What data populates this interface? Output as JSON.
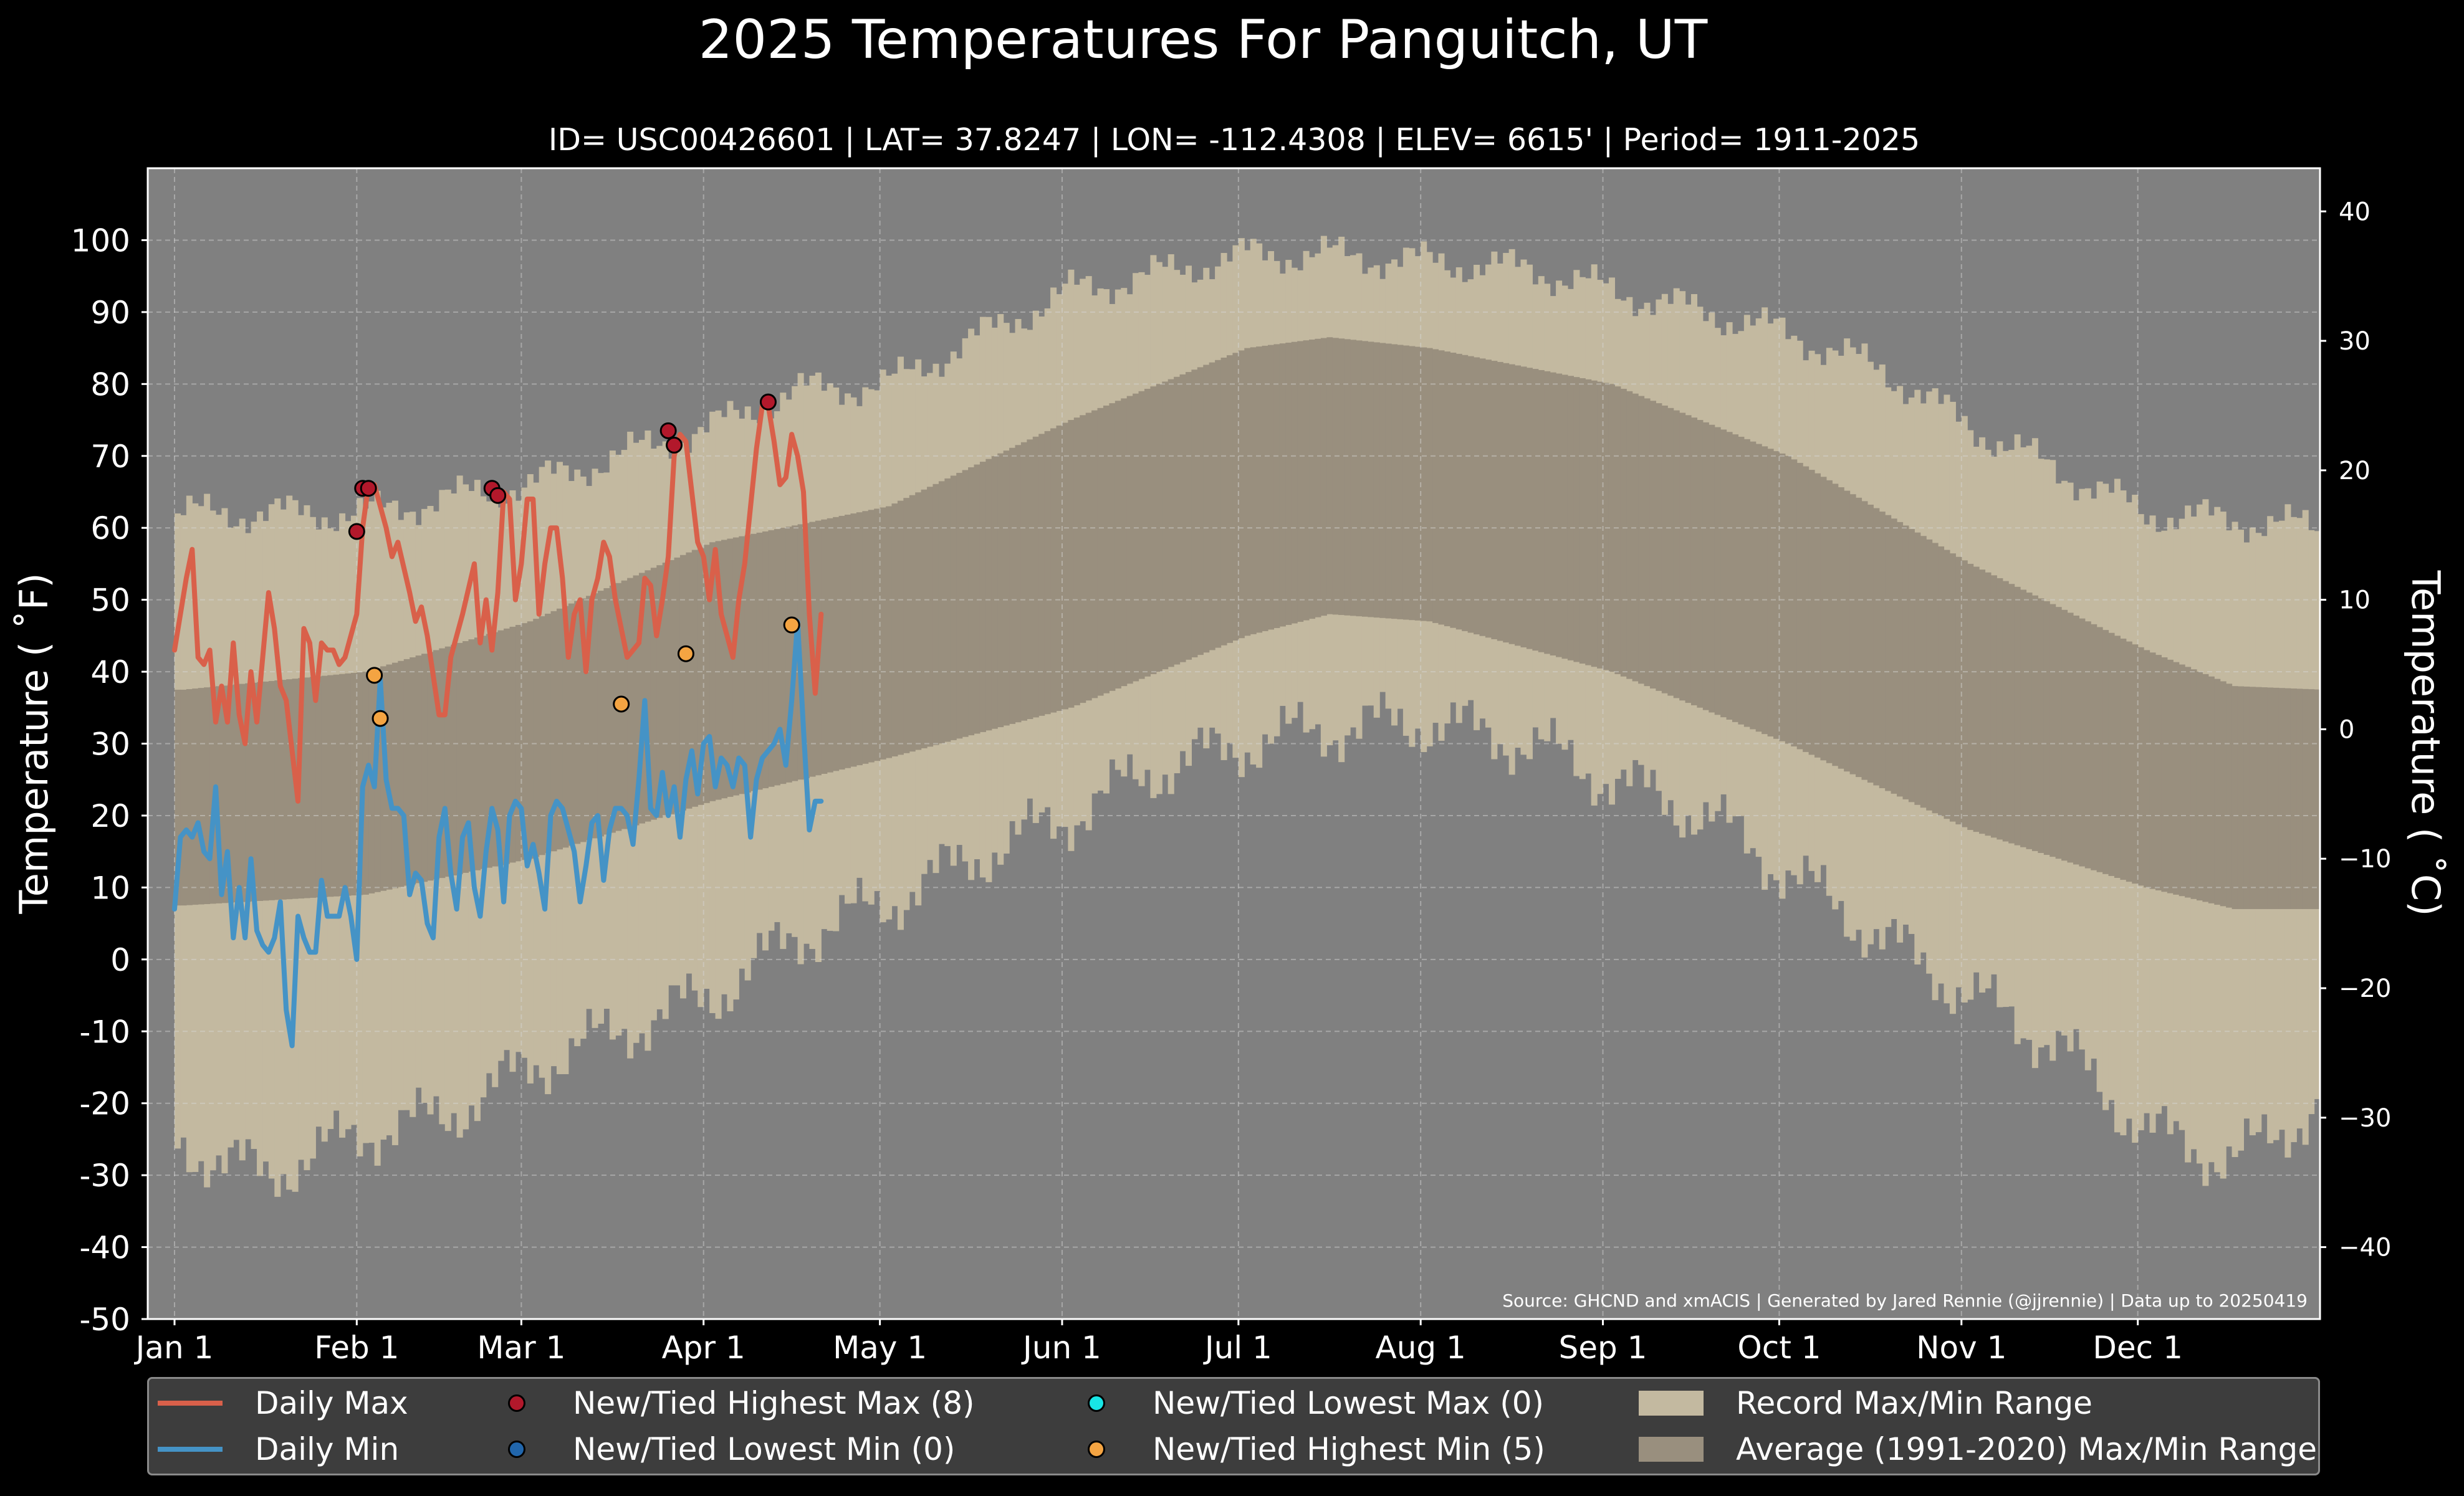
{
  "title": "2025 Temperatures For Panguitch, UT",
  "subtitle": "ID= USC00426601 | LAT= 37.8247 | LON= -112.4308 | ELEV= 6615' | Period= 1911-2025",
  "colors": {
    "background": "#000000",
    "plot_bg": "#808080",
    "record_range": "#c3b9a0",
    "average_range": "#998f7e",
    "daily_max": "#d9604a",
    "daily_min": "#4593c6",
    "high_max_marker": "#b2182b",
    "low_min_marker": "#2166ac",
    "low_max_marker": "#18e6e6",
    "high_min_marker": "#f4a442"
  },
  "legend": {
    "daily_max": "Daily Max",
    "daily_min": "Daily Min",
    "high_max": "New/Tied Highest Max (8)",
    "low_min": "New/Tied Lowest Min (0)",
    "low_max": "New/Tied Lowest Max (0)",
    "high_min": "New/Tied Highest Min (5)",
    "record_range": "Record Max/Min Range",
    "average_range": "Average (1991-2020) Max/Min Range"
  },
  "chart_data": {
    "type": "line",
    "title": "2025 Temperatures For Panguitch, UT",
    "subtitle": "ID= USC00426601 | LAT= 37.8247 | LON= -112.4308 | ELEV= 6615' | Period= 1911-2025",
    "ylabel": "Temperature ($^\\circ$F)",
    "ylabel_left": "Temperature ( ˚F)",
    "ylabel_right": "Temperature ( ˚C)",
    "ylim": [
      -50,
      110
    ],
    "ylim_c": [
      -45.56,
      43.33
    ],
    "xlim_days": [
      0,
      365
    ],
    "grid": true,
    "legend_position": "bottom",
    "x_ticks": [
      {
        "day": 1,
        "label": "Jan 1"
      },
      {
        "day": 32,
        "label": "Feb 1"
      },
      {
        "day": 60,
        "label": "Mar 1"
      },
      {
        "day": 91,
        "label": "Apr 1"
      },
      {
        "day": 121,
        "label": "May 1"
      },
      {
        "day": 152,
        "label": "Jun 1"
      },
      {
        "day": 182,
        "label": "Jul 1"
      },
      {
        "day": 213,
        "label": "Aug 1"
      },
      {
        "day": 244,
        "label": "Sep 1"
      },
      {
        "day": 274,
        "label": "Oct 1"
      },
      {
        "day": 305,
        "label": "Nov 1"
      },
      {
        "day": 335,
        "label": "Dec 1"
      }
    ],
    "y_ticks_f": [
      -50,
      -40,
      -30,
      -20,
      -10,
      0,
      10,
      20,
      30,
      40,
      50,
      60,
      70,
      80,
      90,
      100
    ],
    "y_tick_labels_f": [
      "-50",
      "-40",
      "-30",
      "-20",
      "-10",
      "0",
      "10",
      "20",
      "30",
      "40",
      "50",
      "60",
      "70",
      "80",
      "90",
      "100"
    ],
    "y_ticks_c": [
      -40,
      -30,
      -20,
      -10,
      0,
      10,
      20,
      30,
      40
    ],
    "y_tick_labels_c": [
      "−40",
      "−30",
      "−20",
      "−10",
      "0",
      "10",
      "20",
      "30",
      "40"
    ],
    "record_max_knots": {
      "days": [
        1,
        15,
        32,
        45,
        60,
        75,
        91,
        105,
        121,
        135,
        152,
        165,
        182,
        195,
        213,
        230,
        244,
        260,
        274,
        290,
        305,
        320,
        335,
        350,
        365
      ],
      "values": [
        62,
        62,
        62,
        64,
        66,
        70,
        74,
        79,
        80,
        86,
        93,
        95,
        98,
        98,
        97,
        96,
        93,
        90,
        87,
        82,
        74,
        68,
        62,
        61,
        60
      ]
    },
    "record_min_knots": {
      "days": [
        1,
        15,
        32,
        45,
        60,
        75,
        91,
        105,
        121,
        135,
        152,
        165,
        182,
        195,
        213,
        230,
        244,
        260,
        274,
        290,
        305,
        320,
        335,
        350,
        365
      ],
      "values": [
        -26,
        -30,
        -24,
        -22,
        -15,
        -10,
        -5,
        3,
        8,
        14,
        20,
        26,
        30,
        32,
        33,
        30,
        25,
        20,
        12,
        3,
        -5,
        -12,
        -24,
        -28,
        -20
      ]
    },
    "avg_max_knots": {
      "days": [
        1,
        32,
        60,
        91,
        121,
        152,
        182,
        196,
        213,
        244,
        274,
        305,
        335,
        350,
        365
      ],
      "values": [
        37.5,
        40,
        47,
        58,
        63,
        75,
        85,
        86.5,
        85,
        80,
        70,
        55,
        43,
        38,
        37.5
      ]
    },
    "avg_min_knots": {
      "days": [
        1,
        32,
        60,
        91,
        121,
        152,
        182,
        196,
        213,
        244,
        274,
        305,
        335,
        350,
        365
      ],
      "values": [
        7.5,
        9,
        14,
        22,
        28,
        35,
        45,
        48,
        47,
        40,
        30,
        18,
        10,
        7,
        7
      ]
    },
    "series": [
      {
        "name": "Daily Max",
        "days": [
          0,
          2,
          3,
          4,
          5,
          6,
          7,
          8,
          9,
          10,
          11,
          12,
          13,
          14,
          16,
          17,
          18,
          19,
          21,
          22,
          23,
          24,
          25,
          26,
          27,
          28,
          29,
          30,
          31,
          32,
          33,
          34,
          35,
          36,
          37,
          38,
          40,
          41,
          42,
          43,
          45,
          46,
          47,
          49,
          51,
          52,
          53,
          54,
          55,
          56,
          57,
          58,
          59,
          60,
          61,
          62,
          63,
          64,
          65,
          66,
          67,
          68,
          69,
          70,
          71,
          72,
          73,
          74,
          75,
          77,
          79,
          80,
          81,
          82,
          83,
          84,
          85,
          86,
          87,
          88,
          89,
          90,
          91,
          92,
          93,
          94,
          95,
          96,
          97,
          98,
          99,
          100,
          101,
          102,
          103,
          104,
          105,
          106,
          107,
          108,
          109,
          110
        ],
        "values": [
          43,
          53,
          57,
          42,
          41,
          43,
          33,
          38,
          33,
          44,
          34,
          30,
          40,
          33,
          51,
          46,
          38,
          36,
          22,
          46,
          44,
          36,
          44,
          43,
          43,
          41,
          42,
          45,
          48,
          60,
          66,
          66,
          63,
          60,
          56,
          58,
          51,
          47,
          49,
          45,
          34,
          34,
          42,
          48,
          55,
          44,
          50,
          43,
          51,
          65,
          64,
          50,
          55,
          64,
          64,
          48,
          55,
          60,
          60,
          53,
          42,
          48,
          50,
          40,
          50,
          53,
          58,
          56,
          50,
          42,
          44,
          53,
          52,
          45,
          50,
          56,
          70,
          73,
          72,
          65,
          58,
          56,
          50,
          57,
          48,
          45,
          42,
          50,
          55,
          63,
          71,
          77,
          77,
          72,
          66,
          67,
          73,
          70,
          65,
          48,
          37,
          48
        ]
      },
      {
        "name": "Daily Min",
        "days": [
          0,
          1,
          2,
          3,
          4,
          5,
          6,
          7,
          8,
          9,
          10,
          11,
          12,
          13,
          14,
          15,
          16,
          17,
          18,
          19,
          20,
          21,
          22,
          23,
          24,
          25,
          26,
          27,
          28,
          29,
          30,
          31,
          32,
          33,
          34,
          35,
          36,
          37,
          38,
          39,
          40,
          41,
          42,
          43,
          44,
          45,
          46,
          47,
          48,
          49,
          50,
          51,
          52,
          53,
          54,
          55,
          56,
          57,
          58,
          59,
          60,
          61,
          62,
          63,
          64,
          65,
          66,
          67,
          68,
          69,
          70,
          71,
          72,
          73,
          74,
          75,
          76,
          77,
          78,
          79,
          80,
          81,
          82,
          83,
          84,
          85,
          86,
          87,
          88,
          89,
          90,
          91,
          92,
          93,
          94,
          95,
          96,
          97,
          98,
          99,
          100,
          101,
          102,
          103,
          104,
          105,
          106,
          107,
          108,
          109,
          110
        ],
        "values": [
          7,
          17,
          18,
          17,
          19,
          15,
          14,
          24,
          9,
          15,
          3,
          10,
          3,
          14,
          4,
          2,
          1,
          3,
          8,
          -7,
          -12,
          6,
          3,
          1,
          1,
          11,
          6,
          6,
          6,
          10,
          6,
          0,
          24,
          27,
          24,
          39,
          25,
          21,
          21,
          20,
          9,
          12,
          11,
          5,
          3,
          17,
          21,
          12,
          7,
          17,
          19,
          10,
          6,
          15,
          21,
          18,
          8,
          20,
          22,
          21,
          13,
          16,
          12,
          7,
          20,
          22,
          21,
          18,
          15,
          8,
          13,
          19,
          20,
          11,
          18,
          21,
          21,
          20,
          16,
          25,
          36,
          21,
          20,
          26,
          20,
          24,
          17,
          25,
          29,
          23,
          30,
          31,
          24,
          28,
          27,
          24,
          28,
          27,
          17,
          25,
          28,
          29,
          30,
          32,
          27,
          36,
          47,
          32,
          18,
          22,
          22
        ]
      }
    ],
    "record_points": [
      {
        "type": "New/Tied Highest Max",
        "day": 31,
        "value": 59.5
      },
      {
        "type": "New/Tied Highest Max",
        "day": 32,
        "value": 65.5
      },
      {
        "type": "New/Tied Highest Max",
        "day": 33,
        "value": 65.5
      },
      {
        "type": "New/Tied Highest Max",
        "day": 54,
        "value": 65.5
      },
      {
        "type": "New/Tied Highest Max",
        "day": 55,
        "value": 64.5
      },
      {
        "type": "New/Tied Highest Max",
        "day": 84,
        "value": 73.5
      },
      {
        "type": "New/Tied Highest Max",
        "day": 85,
        "value": 71.5
      },
      {
        "type": "New/Tied Highest Max",
        "day": 101,
        "value": 77.5
      },
      {
        "type": "New/Tied Highest Min",
        "day": 34,
        "value": 39.5
      },
      {
        "type": "New/Tied Highest Min",
        "day": 35,
        "value": 33.5
      },
      {
        "type": "New/Tied Highest Min",
        "day": 76,
        "value": 35.5
      },
      {
        "type": "New/Tied Highest Min",
        "day": 87,
        "value": 42.5
      },
      {
        "type": "New/Tied Highest Min",
        "day": 105,
        "value": 46.5
      }
    ],
    "source_note": "Source: GHCND and xmACIS | Generated by Jared Rennie (@jjrennie) | Data up to 20250419"
  }
}
